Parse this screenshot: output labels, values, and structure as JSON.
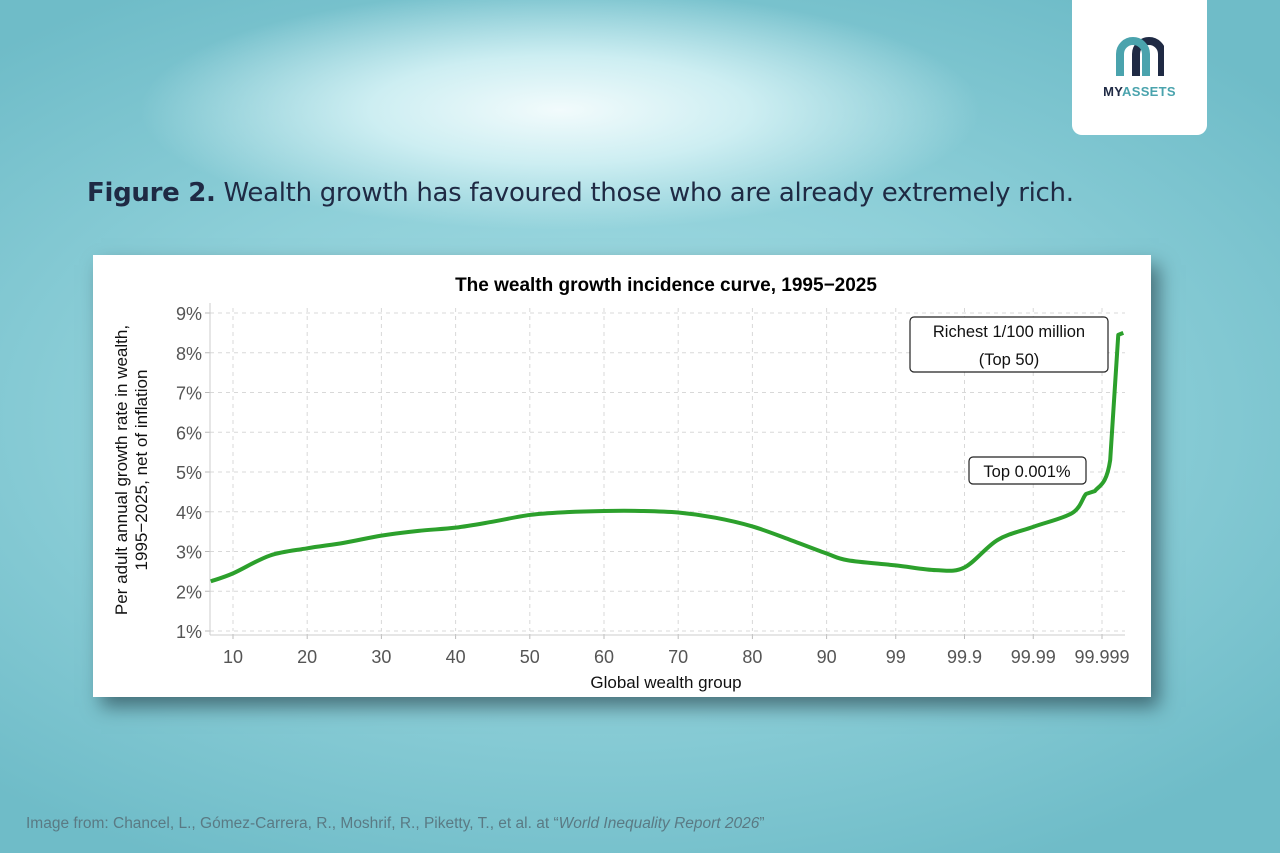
{
  "logo": {
    "text_part1": "MY",
    "text_part2": "ASSETS",
    "colors": {
      "dark": "#1f2a44",
      "teal": "#4aa3ad"
    }
  },
  "caption": {
    "label": "Figure 2.",
    "text": "Wealth growth has favoured those who are already extremely rich."
  },
  "credit": {
    "prefix": "Image from: Chancel, L., Gómez-Carrera, R., Moshrif, R., Piketty, T., et al. at “",
    "source": "World Inequality Report 2026",
    "suffix": "”"
  },
  "chart_data": {
    "type": "line",
    "title": "The wealth growth incidence curve, 1995−2025",
    "xlabel": "Global wealth group",
    "ylabel": [
      "Per adult annual growth rate in wealth,",
      "1995−2025, net of inflation"
    ],
    "x_scale": "linear up to 90, then logarithmic in distance from 100",
    "xticks": [
      "10",
      "20",
      "30",
      "40",
      "50",
      "60",
      "70",
      "80",
      "90",
      "99",
      "99.9",
      "99.99",
      "99.999"
    ],
    "xtick_values": [
      10,
      20,
      30,
      40,
      50,
      60,
      70,
      80,
      90,
      99,
      99.9,
      99.99,
      99.999
    ],
    "yticks": [
      "1%",
      "2%",
      "3%",
      "4%",
      "5%",
      "6%",
      "7%",
      "8%",
      "9%"
    ],
    "ylim": [
      1,
      9
    ],
    "grid": true,
    "line_color": "#2ca02c",
    "points": [
      [
        7,
        2.25
      ],
      [
        10,
        2.45
      ],
      [
        15,
        2.9
      ],
      [
        20,
        3.08
      ],
      [
        25,
        3.22
      ],
      [
        30,
        3.4
      ],
      [
        35,
        3.52
      ],
      [
        40,
        3.6
      ],
      [
        45,
        3.75
      ],
      [
        50,
        3.92
      ],
      [
        55,
        3.99
      ],
      [
        60,
        4.02
      ],
      [
        65,
        4.02
      ],
      [
        70,
        3.98
      ],
      [
        75,
        3.85
      ],
      [
        80,
        3.63
      ],
      [
        85,
        3.3
      ],
      [
        90,
        2.95
      ],
      [
        95,
        2.78
      ],
      [
        99,
        2.65
      ],
      [
        99.74,
        2.53
      ],
      [
        99.9,
        2.6
      ],
      [
        99.967,
        3.29
      ],
      [
        99.99,
        3.62
      ],
      [
        99.9973,
        3.97
      ],
      [
        99.9983,
        4.45
      ],
      [
        99.99873,
        4.52
      ],
      [
        99.99924,
        5.3
      ],
      [
        99.99942,
        8.45
      ],
      [
        99.99951,
        8.5
      ]
    ],
    "annotations": [
      {
        "text": [
          "Richest 1/100 million",
          "(Top 50)"
        ]
      },
      {
        "text": [
          "Top 0.001%"
        ]
      }
    ]
  }
}
